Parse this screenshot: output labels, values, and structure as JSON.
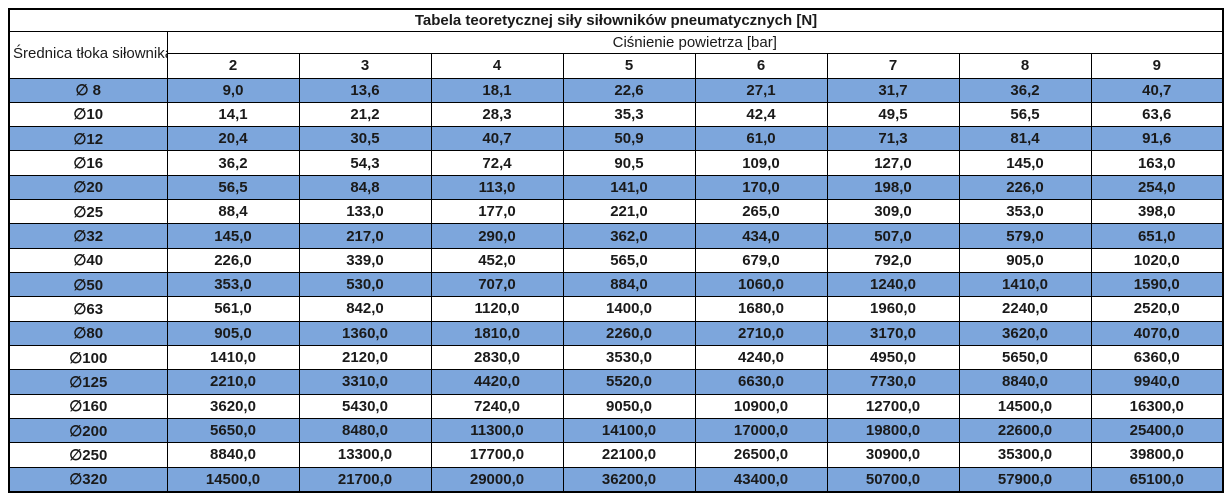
{
  "title": "Tabela teoretycznej siły siłowników pneumatycznych [N]",
  "table": {
    "row_header": "Średnica tłoka siłownika",
    "col_group_header": "Ciśnienie powietrza [bar]",
    "pressures": [
      "2",
      "3",
      "4",
      "5",
      "6",
      "7",
      "8",
      "9"
    ],
    "rows": [
      {
        "d": "∅ 8",
        "highlighted": true,
        "v": [
          "9,0",
          "13,6",
          "18,1",
          "22,6",
          "27,1",
          "31,7",
          "36,2",
          "40,7"
        ]
      },
      {
        "d": "∅10",
        "highlighted": false,
        "v": [
          "14,1",
          "21,2",
          "28,3",
          "35,3",
          "42,4",
          "49,5",
          "56,5",
          "63,6"
        ]
      },
      {
        "d": "∅12",
        "highlighted": true,
        "v": [
          "20,4",
          "30,5",
          "40,7",
          "50,9",
          "61,0",
          "71,3",
          "81,4",
          "91,6"
        ]
      },
      {
        "d": "∅16",
        "highlighted": false,
        "v": [
          "36,2",
          "54,3",
          "72,4",
          "90,5",
          "109,0",
          "127,0",
          "145,0",
          "163,0"
        ]
      },
      {
        "d": "∅20",
        "highlighted": true,
        "v": [
          "56,5",
          "84,8",
          "113,0",
          "141,0",
          "170,0",
          "198,0",
          "226,0",
          "254,0"
        ]
      },
      {
        "d": "∅25",
        "highlighted": false,
        "v": [
          "88,4",
          "133,0",
          "177,0",
          "221,0",
          "265,0",
          "309,0",
          "353,0",
          "398,0"
        ]
      },
      {
        "d": "∅32",
        "highlighted": true,
        "v": [
          "145,0",
          "217,0",
          "290,0",
          "362,0",
          "434,0",
          "507,0",
          "579,0",
          "651,0"
        ]
      },
      {
        "d": "∅40",
        "highlighted": false,
        "v": [
          "226,0",
          "339,0",
          "452,0",
          "565,0",
          "679,0",
          "792,0",
          "905,0",
          "1020,0"
        ]
      },
      {
        "d": "∅50",
        "highlighted": true,
        "v": [
          "353,0",
          "530,0",
          "707,0",
          "884,0",
          "1060,0",
          "1240,0",
          "1410,0",
          "1590,0"
        ]
      },
      {
        "d": "∅63",
        "highlighted": false,
        "v": [
          "561,0",
          "842,0",
          "1120,0",
          "1400,0",
          "1680,0",
          "1960,0",
          "2240,0",
          "2520,0"
        ]
      },
      {
        "d": "∅80",
        "highlighted": true,
        "v": [
          "905,0",
          "1360,0",
          "1810,0",
          "2260,0",
          "2710,0",
          "3170,0",
          "3620,0",
          "4070,0"
        ]
      },
      {
        "d": "∅100",
        "highlighted": false,
        "v": [
          "1410,0",
          "2120,0",
          "2830,0",
          "3530,0",
          "4240,0",
          "4950,0",
          "5650,0",
          "6360,0"
        ]
      },
      {
        "d": "∅125",
        "highlighted": true,
        "v": [
          "2210,0",
          "3310,0",
          "4420,0",
          "5520,0",
          "6630,0",
          "7730,0",
          "8840,0",
          "9940,0"
        ]
      },
      {
        "d": "∅160",
        "highlighted": false,
        "v": [
          "3620,0",
          "5430,0",
          "7240,0",
          "9050,0",
          "10900,0",
          "12700,0",
          "14500,0",
          "16300,0"
        ]
      },
      {
        "d": "∅200",
        "highlighted": true,
        "v": [
          "5650,0",
          "8480,0",
          "11300,0",
          "14100,0",
          "17000,0",
          "19800,0",
          "22600,0",
          "25400,0"
        ]
      },
      {
        "d": "∅250",
        "highlighted": false,
        "v": [
          "8840,0",
          "13300,0",
          "17700,0",
          "22100,0",
          "26500,0",
          "30900,0",
          "35300,0",
          "39800,0"
        ]
      },
      {
        "d": "∅320",
        "highlighted": true,
        "v": [
          "14500,0",
          "21700,0",
          "29000,0",
          "36200,0",
          "43400,0",
          "50700,0",
          "57900,0",
          "65100,0"
        ]
      }
    ]
  },
  "colors": {
    "row_highlight": "#7DA6DC",
    "border": "#000000",
    "text": "#1a1a1a",
    "background": "#ffffff"
  }
}
